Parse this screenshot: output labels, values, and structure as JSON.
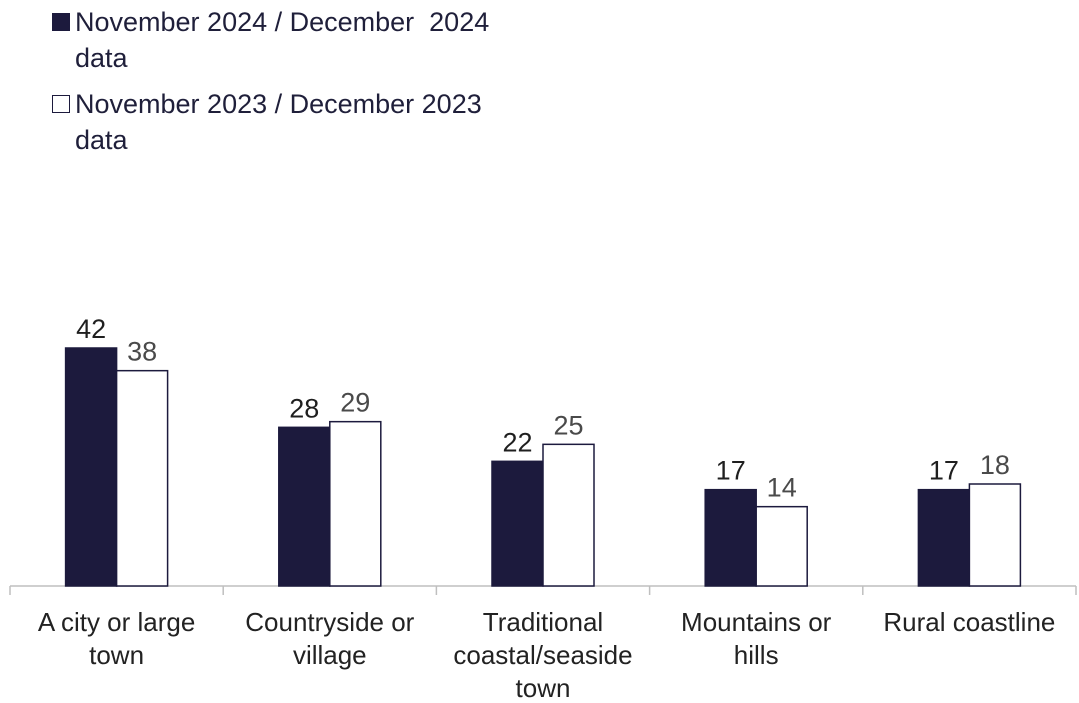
{
  "chart_data": {
    "type": "bar",
    "categories": [
      [
        "A city or large",
        "town"
      ],
      [
        "Countryside or",
        "village"
      ],
      [
        "Traditional",
        "coastal/seaside",
        "town"
      ],
      [
        "Mountains or",
        "hills"
      ],
      [
        "Rural coastline"
      ]
    ],
    "series": [
      {
        "name": "November 2024 / December  2024 data",
        "legend_lines": [
          "November 2024 / December  2024",
          "data"
        ],
        "values": [
          42,
          28,
          22,
          17,
          17
        ],
        "color": "#1c1a3d",
        "label_color": "#1f1f1f"
      },
      {
        "name": "November 2023 / December 2023 data",
        "legend_lines": [
          "November 2023 / December 2023",
          "data"
        ],
        "values": [
          38,
          29,
          25,
          14,
          18
        ],
        "color": "#ffffff",
        "stroke": "#1c1a3d",
        "label_color": "#4a4a4a"
      }
    ],
    "ylim": [
      0,
      42
    ],
    "legend_position": "top-left",
    "grid": false,
    "title": "",
    "xlabel": "",
    "ylabel": ""
  }
}
